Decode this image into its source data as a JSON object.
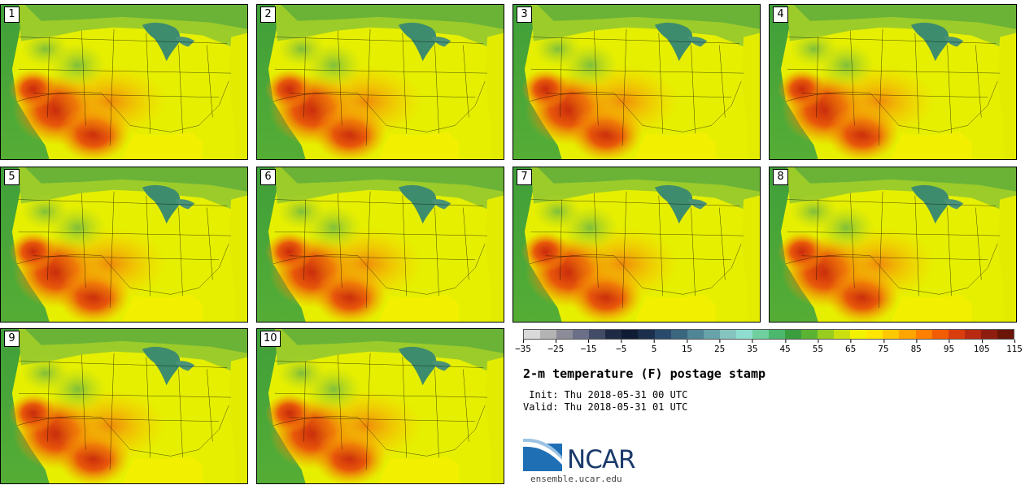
{
  "title": "2-m temperature (F) postage stamp",
  "init": " Init: Thu 2018-05-31 00 UTC",
  "valid": "Valid: Thu 2018-05-31 01 UTC",
  "org_name": "NCAR",
  "org_url": "ensemble.ucar.edu",
  "members": [
    "1",
    "2",
    "3",
    "4",
    "5",
    "6",
    "7",
    "8",
    "9",
    "10"
  ],
  "colorbar": {
    "tick_labels": [
      "−35",
      "−25",
      "−15",
      "−5",
      "5",
      "15",
      "25",
      "35",
      "45",
      "55",
      "65",
      "75",
      "85",
      "95",
      "105",
      "115"
    ],
    "colors": [
      "#d9d9d9",
      "#b3b3b3",
      "#8c8c99",
      "#6b7088",
      "#434c66",
      "#1f2a44",
      "#0f1c33",
      "#1b2f4d",
      "#2a4a6b",
      "#3b6680",
      "#4f8595",
      "#67a3a8",
      "#86c4c0",
      "#8fddd0",
      "#6fcf9e",
      "#4cb86e",
      "#3a9e3e",
      "#5bb333",
      "#98cc1f",
      "#cce010",
      "#f2f200",
      "#ffe600",
      "#ffc800",
      "#ffa500",
      "#ff7f00",
      "#f25c05",
      "#d93d0d",
      "#b82a12",
      "#8f1d0f",
      "#6b1408"
    ]
  }
}
